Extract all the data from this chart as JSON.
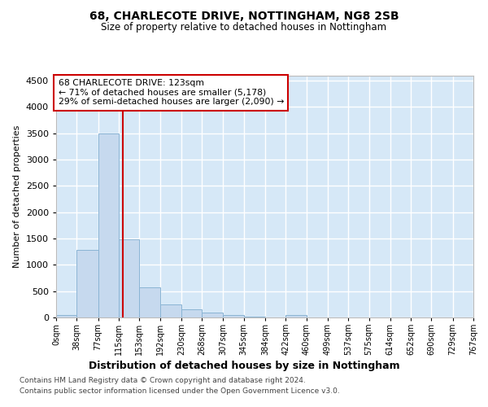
{
  "title1": "68, CHARLECOTE DRIVE, NOTTINGHAM, NG8 2SB",
  "title2": "Size of property relative to detached houses in Nottingham",
  "xlabel": "Distribution of detached houses by size in Nottingham",
  "ylabel": "Number of detached properties",
  "footnote1": "Contains HM Land Registry data © Crown copyright and database right 2024.",
  "footnote2": "Contains public sector information licensed under the Open Government Licence v3.0.",
  "annotation_line1": "68 CHARLECOTE DRIVE: 123sqm",
  "annotation_line2": "← 71% of detached houses are smaller (5,178)",
  "annotation_line3": "29% of semi-detached houses are larger (2,090) →",
  "bar_color": "#c6d9ee",
  "bar_edge_color": "#8ab4d4",
  "marker_line_color": "#cc0000",
  "marker_value": 123,
  "bin_edges": [
    0,
    38,
    77,
    115,
    153,
    192,
    230,
    268,
    307,
    345,
    384,
    422,
    460,
    499,
    537,
    575,
    614,
    652,
    690,
    729,
    767
  ],
  "bar_heights": [
    50,
    1280,
    3500,
    1480,
    575,
    250,
    150,
    100,
    50,
    10,
    5,
    50,
    0,
    0,
    0,
    0,
    0,
    0,
    0,
    0
  ],
  "ylim": [
    0,
    4600
  ],
  "yticks": [
    0,
    500,
    1000,
    1500,
    2000,
    2500,
    3000,
    3500,
    4000,
    4500
  ],
  "xlim": [
    0,
    767
  ],
  "fig_bg": "#ffffff",
  "axes_bg": "#d6e8f7"
}
